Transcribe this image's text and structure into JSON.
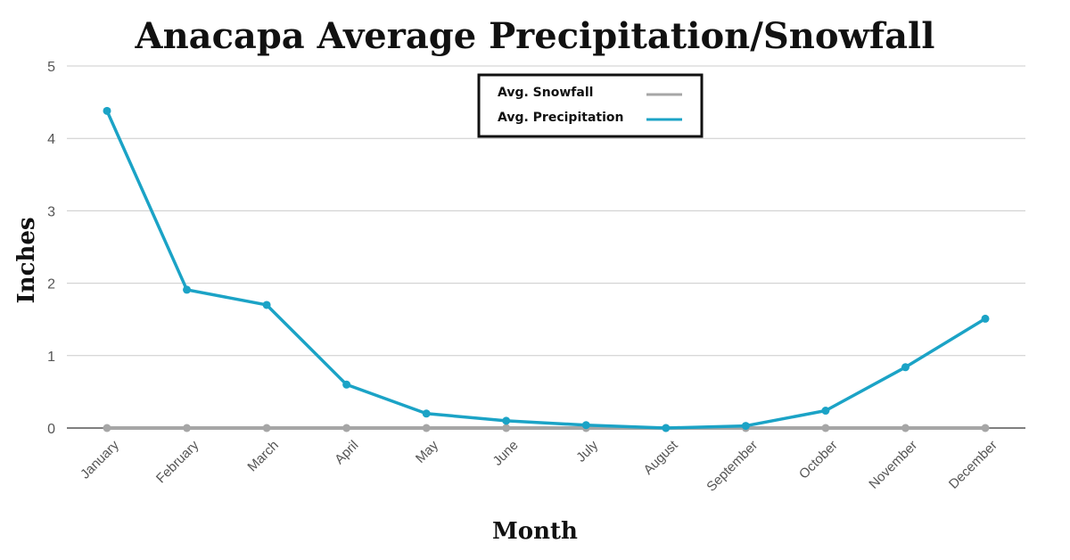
{
  "chart_data": {
    "type": "line",
    "title": "Anacapa Average Precipitation/Snowfall",
    "xlabel": "Month",
    "ylabel": "Inches",
    "categories": [
      "January",
      "February",
      "March",
      "April",
      "May",
      "June",
      "July",
      "August",
      "September",
      "October",
      "November",
      "December"
    ],
    "ylim": [
      0,
      5
    ],
    "yticks": [
      "0",
      "1",
      "2",
      "3",
      "4",
      "5"
    ],
    "grid": true,
    "legend_position": "top-center",
    "series": [
      {
        "name": "Avg. Snowfall",
        "color": "#a6a6a6",
        "values": [
          0,
          0,
          0,
          0,
          0,
          0,
          0,
          0,
          0,
          0,
          0,
          0
        ]
      },
      {
        "name": "Avg. Precipitation",
        "color": "#1ba3c6",
        "values": [
          4.38,
          1.91,
          1.7,
          0.6,
          0.2,
          0.1,
          0.04,
          0.0,
          0.03,
          0.24,
          0.84,
          1.51
        ]
      }
    ]
  }
}
